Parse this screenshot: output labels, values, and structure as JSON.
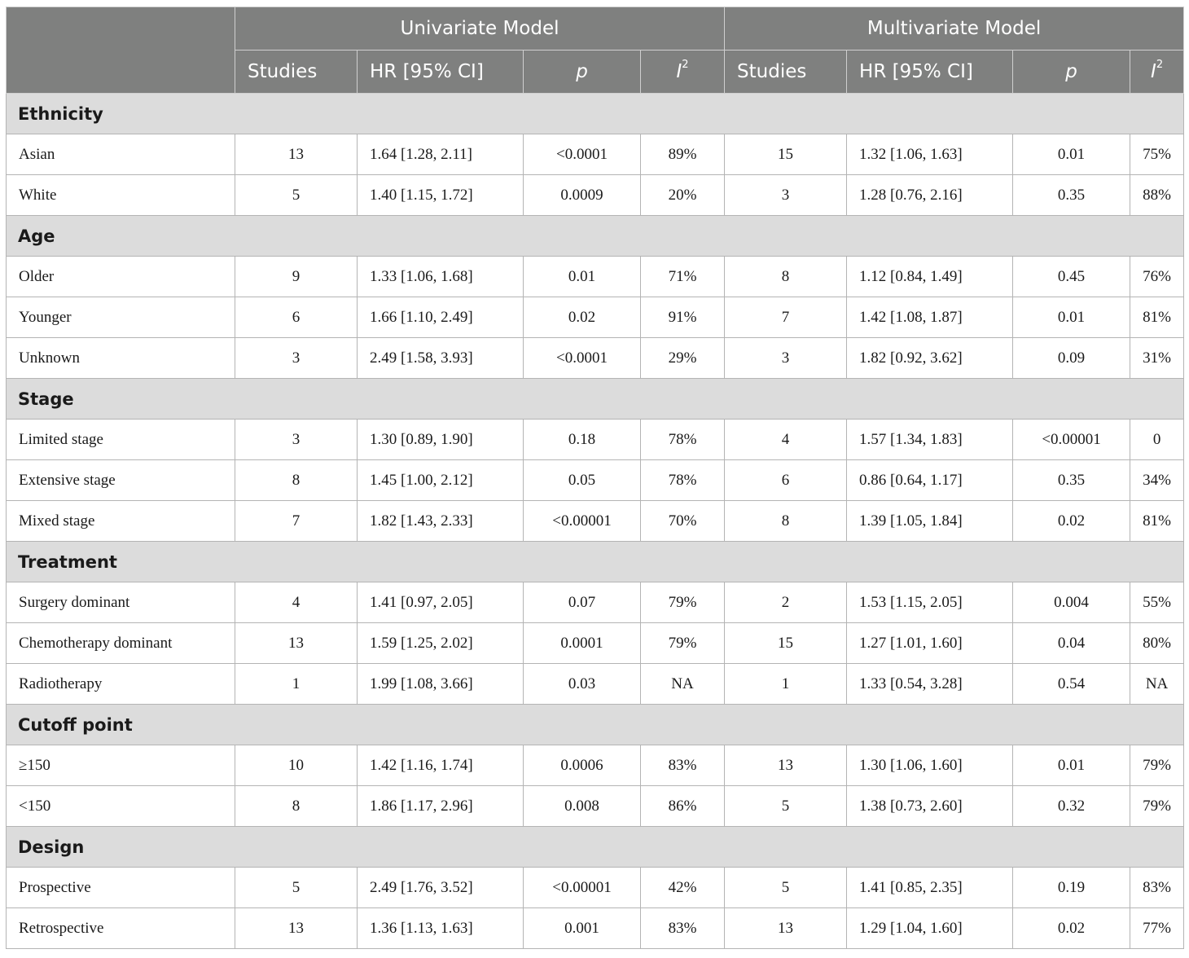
{
  "header": {
    "univariate": "Univariate Model",
    "multivariate": "Multivariate Model",
    "cols": {
      "studies": "Studies",
      "hr": "HR [95% CI]",
      "p": "p",
      "i2_letter": "I",
      "i2_sup": "2"
    }
  },
  "groups": [
    {
      "name": "Ethnicity",
      "rows": [
        {
          "label": "Asian",
          "u_studies": "13",
          "u_hr": "1.64 [1.28, 2.11]",
          "u_p": "<0.0001",
          "u_i2": "89%",
          "m_studies": "15",
          "m_hr": "1.32 [1.06, 1.63]",
          "m_p": "0.01",
          "m_i2": "75%"
        },
        {
          "label": "White",
          "u_studies": "5",
          "u_hr": "1.40 [1.15, 1.72]",
          "u_p": "0.0009",
          "u_i2": "20%",
          "m_studies": "3",
          "m_hr": "1.28 [0.76, 2.16]",
          "m_p": "0.35",
          "m_i2": "88%"
        }
      ]
    },
    {
      "name": "Age",
      "rows": [
        {
          "label": "Older",
          "u_studies": "9",
          "u_hr": "1.33 [1.06, 1.68]",
          "u_p": "0.01",
          "u_i2": "71%",
          "m_studies": "8",
          "m_hr": "1.12 [0.84, 1.49]",
          "m_p": "0.45",
          "m_i2": "76%"
        },
        {
          "label": "Younger",
          "u_studies": "6",
          "u_hr": "1.66 [1.10, 2.49]",
          "u_p": "0.02",
          "u_i2": "91%",
          "m_studies": "7",
          "m_hr": "1.42 [1.08, 1.87]",
          "m_p": "0.01",
          "m_i2": "81%"
        },
        {
          "label": "Unknown",
          "u_studies": "3",
          "u_hr": "2.49 [1.58, 3.93]",
          "u_p": "<0.0001",
          "u_i2": "29%",
          "m_studies": "3",
          "m_hr": "1.82 [0.92, 3.62]",
          "m_p": "0.09",
          "m_i2": "31%"
        }
      ]
    },
    {
      "name": "Stage",
      "rows": [
        {
          "label": "Limited stage",
          "u_studies": "3",
          "u_hr": "1.30 [0.89, 1.90]",
          "u_p": "0.18",
          "u_i2": "78%",
          "m_studies": "4",
          "m_hr": "1.57 [1.34, 1.83]",
          "m_p": "<0.00001",
          "m_i2": "0"
        },
        {
          "label": "Extensive stage",
          "u_studies": "8",
          "u_hr": "1.45 [1.00, 2.12]",
          "u_p": "0.05",
          "u_i2": "78%",
          "m_studies": "6",
          "m_hr": "0.86 [0.64, 1.17]",
          "m_p": "0.35",
          "m_i2": "34%"
        },
        {
          "label": "Mixed stage",
          "u_studies": "7",
          "u_hr": "1.82 [1.43, 2.33]",
          "u_p": "<0.00001",
          "u_i2": "70%",
          "m_studies": "8",
          "m_hr": "1.39 [1.05, 1.84]",
          "m_p": "0.02",
          "m_i2": "81%"
        }
      ]
    },
    {
      "name": "Treatment",
      "rows": [
        {
          "label": "Surgery dominant",
          "u_studies": "4",
          "u_hr": "1.41 [0.97, 2.05]",
          "u_p": "0.07",
          "u_i2": "79%",
          "m_studies": "2",
          "m_hr": "1.53 [1.15, 2.05]",
          "m_p": "0.004",
          "m_i2": "55%"
        },
        {
          "label": "Chemotherapy dominant",
          "u_studies": "13",
          "u_hr": "1.59 [1.25, 2.02]",
          "u_p": "0.0001",
          "u_i2": "79%",
          "m_studies": "15",
          "m_hr": "1.27 [1.01, 1.60]",
          "m_p": "0.04",
          "m_i2": "80%"
        },
        {
          "label": "Radiotherapy",
          "u_studies": "1",
          "u_hr": "1.99 [1.08, 3.66]",
          "u_p": "0.03",
          "u_i2": "NA",
          "m_studies": "1",
          "m_hr": "1.33 [0.54, 3.28]",
          "m_p": "0.54",
          "m_i2": "NA"
        }
      ]
    },
    {
      "name": "Cutoff point",
      "rows": [
        {
          "label": "≥150",
          "u_studies": "10",
          "u_hr": "1.42 [1.16, 1.74]",
          "u_p": "0.0006",
          "u_i2": "83%",
          "m_studies": "13",
          "m_hr": "1.30 [1.06, 1.60]",
          "m_p": "0.01",
          "m_i2": "79%"
        },
        {
          "label": "<150",
          "u_studies": "8",
          "u_hr": "1.86 [1.17, 2.96]",
          "u_p": "0.008",
          "u_i2": "86%",
          "m_studies": "5",
          "m_hr": "1.38 [0.73, 2.60]",
          "m_p": "0.32",
          "m_i2": "79%"
        }
      ]
    },
    {
      "name": "Design",
      "rows": [
        {
          "label": "Prospective",
          "u_studies": "5",
          "u_hr": "2.49 [1.76, 3.52]",
          "u_p": "<0.00001",
          "u_i2": "42%",
          "m_studies": "5",
          "m_hr": "1.41 [0.85, 2.35]",
          "m_p": "0.19",
          "m_i2": "83%"
        },
        {
          "label": "Retrospective",
          "u_studies": "13",
          "u_hr": "1.36 [1.13, 1.63]",
          "u_p": "0.001",
          "u_i2": "83%",
          "m_studies": "13",
          "m_hr": "1.29 [1.04, 1.60]",
          "m_p": "0.02",
          "m_i2": "77%"
        }
      ]
    }
  ]
}
